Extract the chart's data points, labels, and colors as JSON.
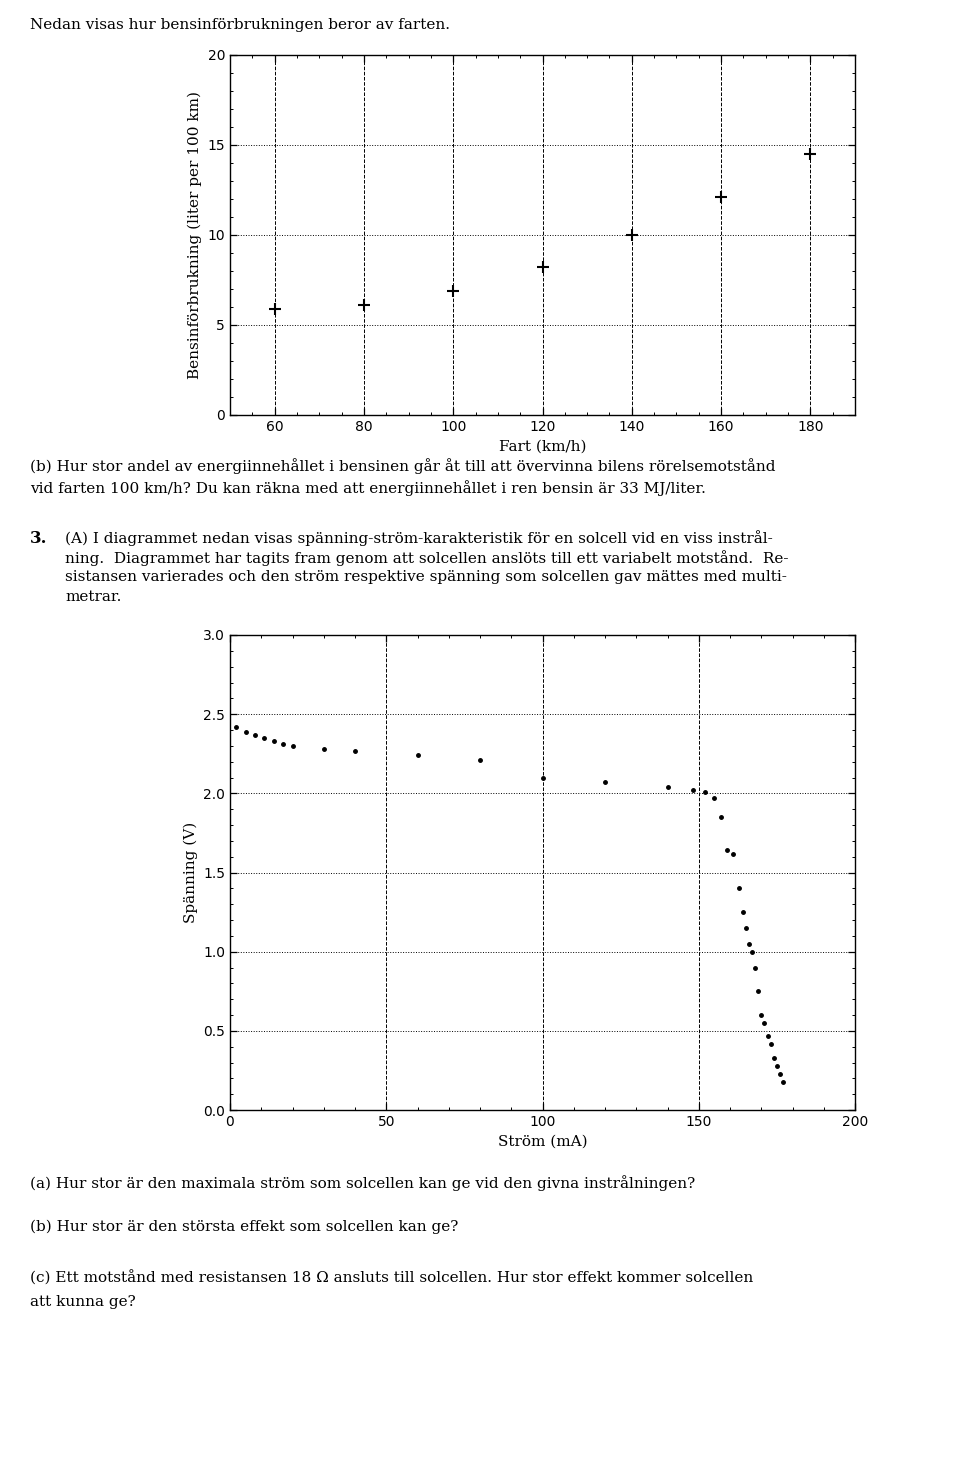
{
  "chart1": {
    "x": [
      60,
      80,
      100,
      120,
      140,
      160,
      180
    ],
    "y": [
      5.9,
      6.1,
      6.9,
      8.2,
      10.0,
      12.1,
      14.5
    ],
    "xlabel": "Fart (km/h)",
    "ylabel": "Bensinförbrukning (liter per 100 km)",
    "xlim": [
      50,
      190
    ],
    "ylim": [
      0,
      20
    ],
    "xticks": [
      60,
      80,
      100,
      120,
      140,
      160,
      180
    ],
    "yticks": [
      0,
      5,
      10,
      15,
      20
    ]
  },
  "chart2": {
    "x": [
      2,
      5,
      8,
      11,
      14,
      17,
      20,
      30,
      40,
      60,
      80,
      100,
      120,
      140,
      148,
      152,
      155,
      157,
      159,
      161,
      163,
      164,
      165,
      166,
      167,
      168,
      169,
      170,
      171,
      172,
      173,
      174,
      175,
      176,
      177
    ],
    "y": [
      2.42,
      2.39,
      2.37,
      2.35,
      2.33,
      2.31,
      2.3,
      2.28,
      2.27,
      2.24,
      2.21,
      2.1,
      2.07,
      2.04,
      2.02,
      2.01,
      1.97,
      1.85,
      1.64,
      1.62,
      1.4,
      1.25,
      1.15,
      1.05,
      1.0,
      0.9,
      0.75,
      0.6,
      0.55,
      0.47,
      0.42,
      0.33,
      0.28,
      0.23,
      0.18
    ],
    "xlabel": "Ström (mA)",
    "ylabel": "Spänning (V)",
    "xlim": [
      0,
      200
    ],
    "ylim": [
      0.0,
      3.0
    ],
    "xticks": [
      0,
      50,
      100,
      150,
      200
    ],
    "yticks": [
      0.0,
      0.5,
      1.0,
      1.5,
      2.0,
      2.5,
      3.0
    ]
  },
  "text1": "Nedan visas hur bensinförbrukningen beror av farten.",
  "text2a": "(b) Hur stor andel av energiinnehållet i bensinen går åt till att övervinna bilens rörelsemotstånd",
  "text2b": "vid farten 100 km/h? Du kan räkna med att energiinnehållet i ren bensin är 33 MJ/liter.",
  "text3_num": "3.",
  "text3_lines": [
    "(A) I diagrammet nedan visas spänning-ström-karakteristik för en solcell vid en viss instrål-",
    "ning.  Diagrammet har tagits fram genom att solcellen anslöts till ett variabelt motstånd.  Re-",
    "sistansen varierades och den ström respektive spänning som solcellen gav mättes med multi-",
    "metrar."
  ],
  "text4a": "(a) Hur stor är den maximala ström som solcellen kan ge vid den givna instrålningen?",
  "text4b": "(b) Hur stor är den största effekt som solcellen kan ge?",
  "text4c1": "(c) Ett motstånd med resistansen 18 Ω ansluts till solcellen. Hur stor effekt kommer solcellen",
  "text4c2": "att kunna ge?",
  "background_color": "#ffffff",
  "text_color": "#000000",
  "fontsize_body": 11,
  "fontsize_num": 12
}
